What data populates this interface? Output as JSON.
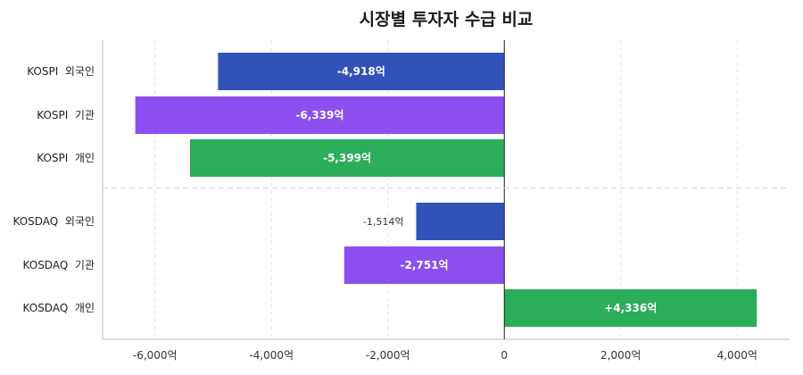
{
  "chart_data": {
    "type": "bar",
    "orientation": "horizontal",
    "title": "시장별 투자자 수급 비교",
    "categories": [
      "KOSPI  외국인",
      "KOSPI  기관",
      "KOSPI  개인",
      "KOSDAQ  외국인",
      "KOSDAQ  기관",
      "KOSDAQ  개인"
    ],
    "values": [
      -4918,
      -6339,
      -5399,
      -1514,
      -2751,
      4336
    ],
    "value_labels": [
      "-4,918억",
      "-6,339억",
      "-5,399억",
      "-1,514억",
      "-2,751억",
      "+4,336억"
    ],
    "bar_colors": [
      "#3352b7",
      "#8b50ef",
      "#2bad5a",
      "#3352b7",
      "#8b50ef",
      "#2bad5a"
    ],
    "xlim": [
      -6900,
      4900
    ],
    "xticks": [
      -6000,
      -4000,
      -2000,
      0,
      2000,
      4000
    ],
    "xtick_labels": [
      "-6,000억",
      "-4,000억",
      "-2,000억",
      "0",
      "2,000억",
      "4,000억"
    ],
    "grid": true,
    "group_separator_after_index": 2
  }
}
